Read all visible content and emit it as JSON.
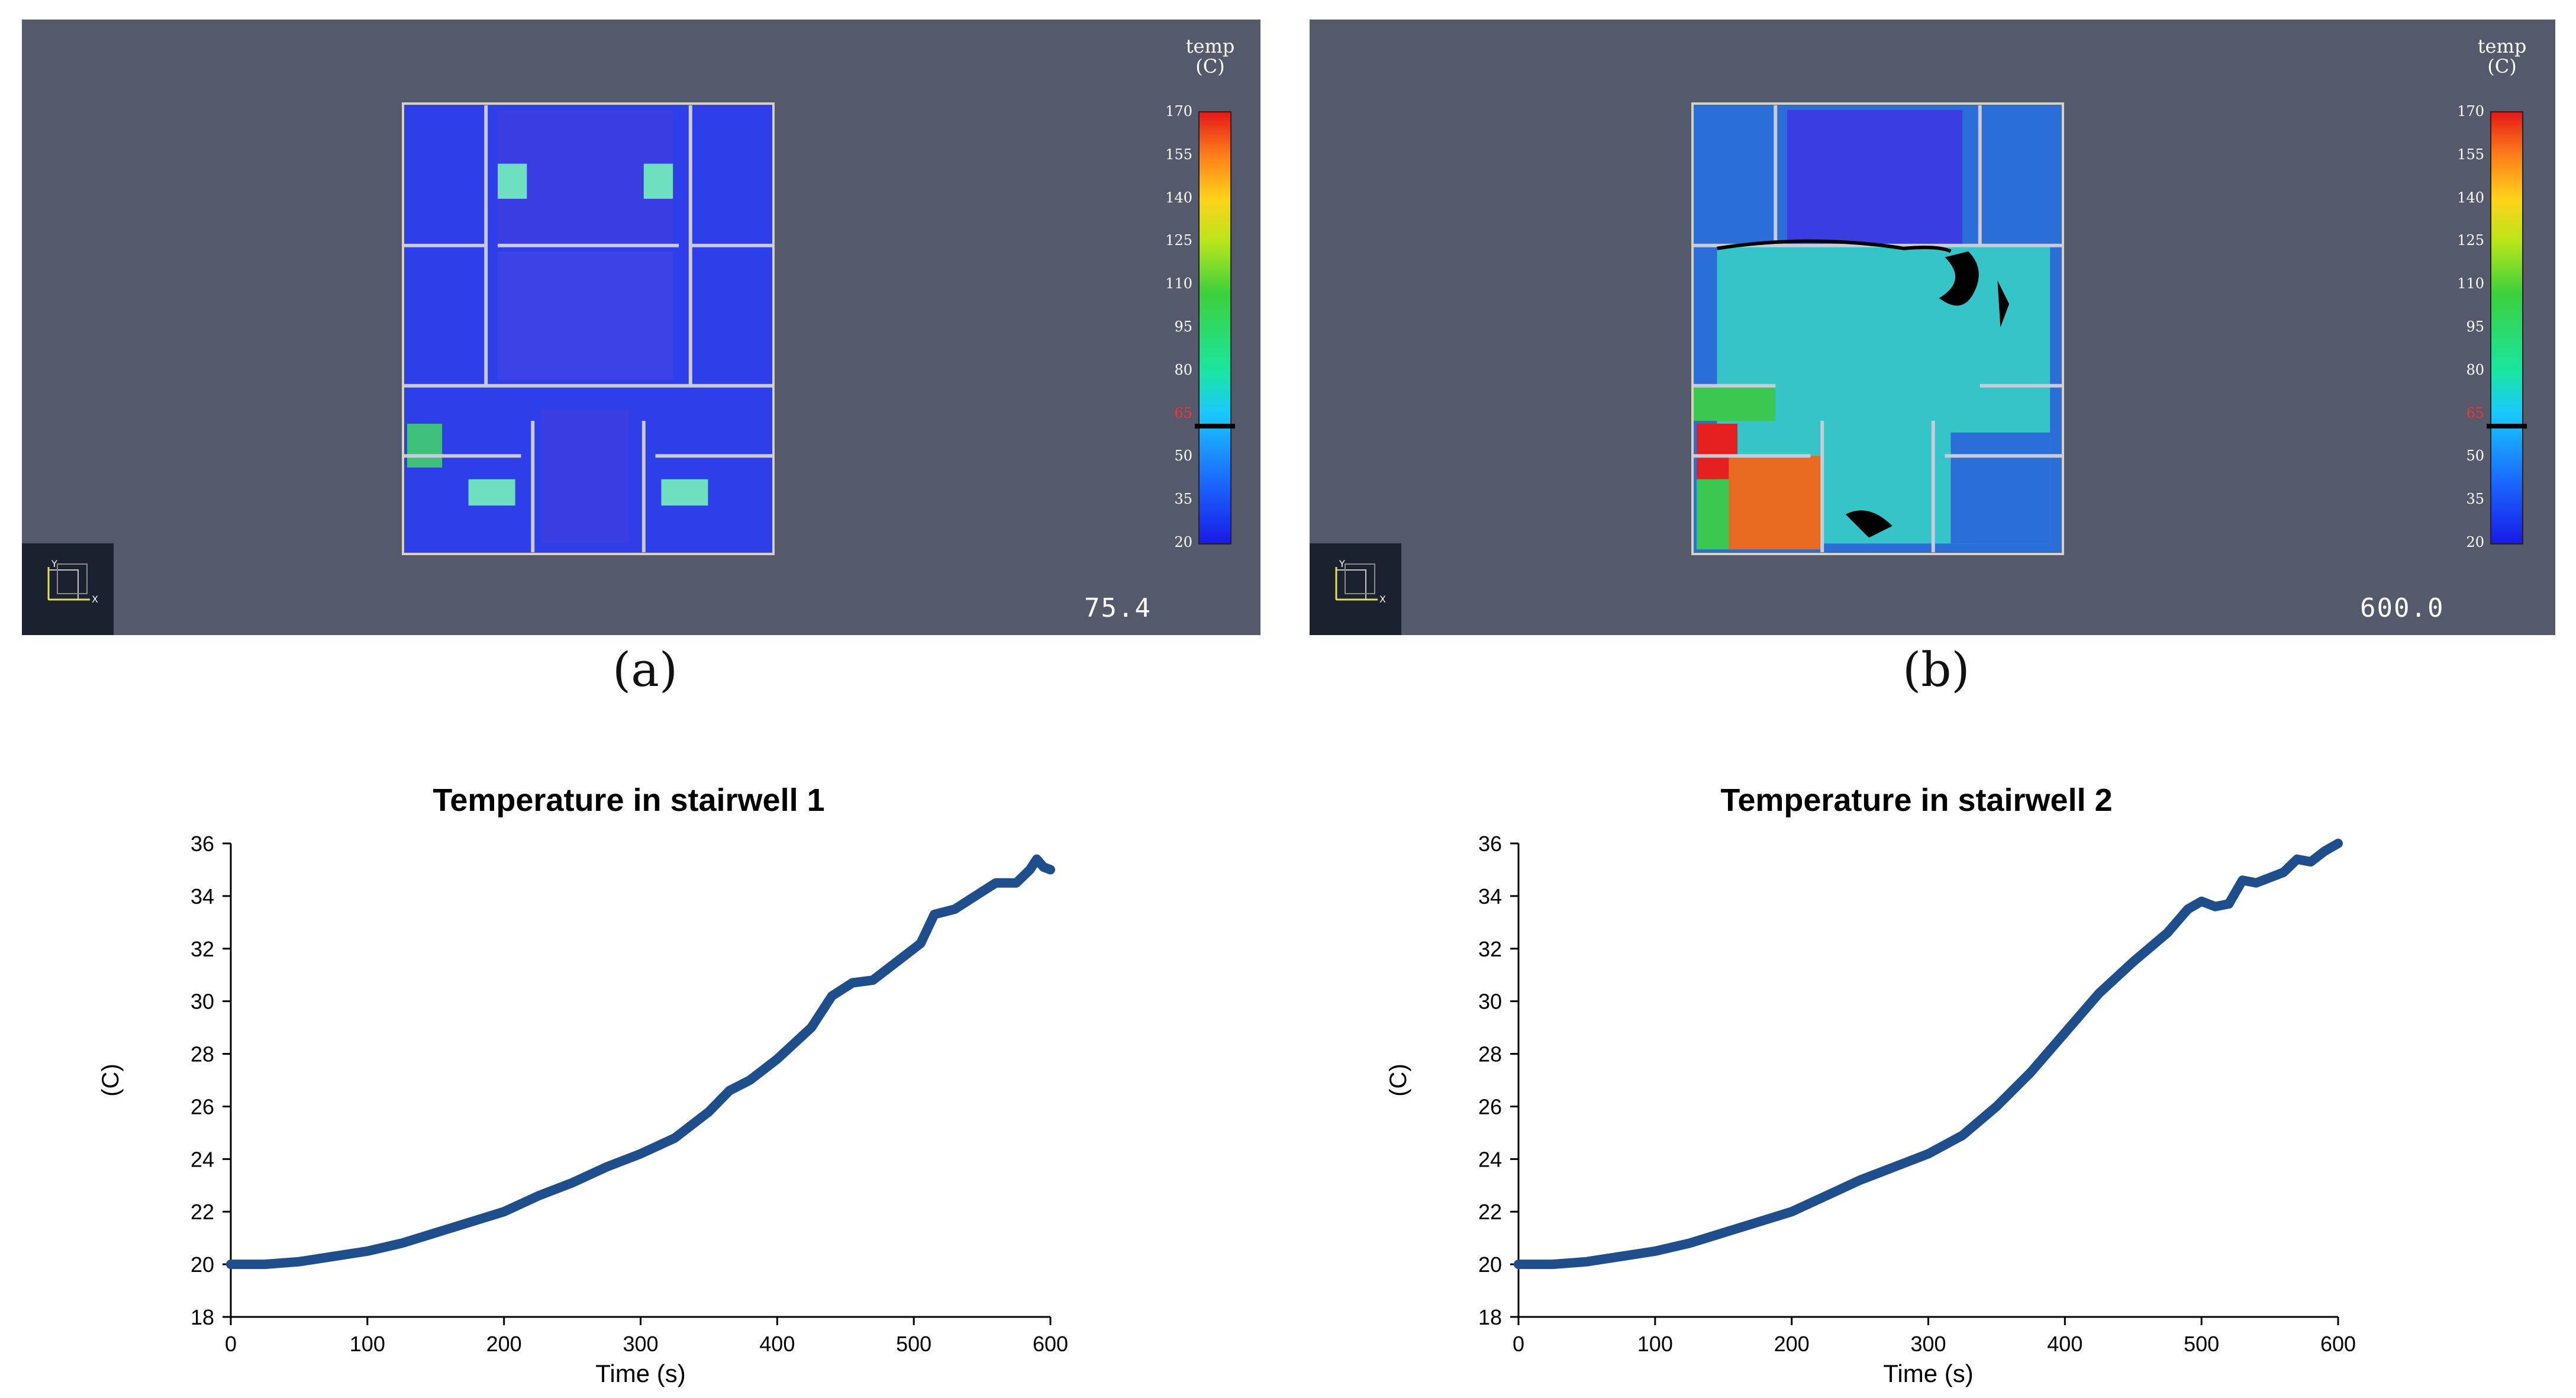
{
  "panels": [
    {
      "label": "(a)",
      "time": "75.4",
      "colorbar_title": "temp\n(C)"
    },
    {
      "label": "(b)",
      "time": "600.0",
      "colorbar_title": "temp\n(C)"
    }
  ],
  "colorbar": {
    "ticks": [
      "170",
      "155",
      "140",
      "125",
      "110",
      "95",
      "80",
      "65",
      "50",
      "35",
      "20"
    ],
    "highlight_tick": "65",
    "colors": {
      "low": "#1a1ae6",
      "mid": "#19e6a0",
      "high": "#e61919",
      "background": "#545a6c"
    }
  },
  "chart_data": [
    {
      "type": "line",
      "title": "Temperature in stairwell 1",
      "xlabel": "Time (s)",
      "ylabel": "(C)",
      "xlim": [
        0,
        600
      ],
      "ylim": [
        18,
        36
      ],
      "xticks": [
        0,
        100,
        200,
        300,
        400,
        500,
        600
      ],
      "yticks": [
        18,
        20,
        22,
        24,
        26,
        28,
        30,
        32,
        34,
        36
      ],
      "series": [
        {
          "name": "stairwell 1",
          "color": "#1f4e8c",
          "x": [
            0,
            25,
            50,
            75,
            100,
            125,
            150,
            175,
            200,
            225,
            250,
            275,
            300,
            325,
            350,
            365,
            380,
            400,
            425,
            440,
            455,
            470,
            490,
            505,
            515,
            530,
            545,
            560,
            575,
            585,
            590,
            595,
            600
          ],
          "y": [
            20.0,
            20.0,
            20.1,
            20.3,
            20.5,
            20.8,
            21.2,
            21.6,
            22.0,
            22.6,
            23.1,
            23.7,
            24.2,
            24.8,
            25.8,
            26.6,
            27.0,
            27.8,
            29.0,
            30.2,
            30.7,
            30.8,
            31.6,
            32.2,
            33.3,
            33.5,
            34.0,
            34.5,
            34.5,
            35.0,
            35.4,
            35.1,
            35.0
          ]
        }
      ]
    },
    {
      "type": "line",
      "title": "Temperature in stairwell 2",
      "xlabel": "Time (s)",
      "ylabel": "(C)",
      "xlim": [
        0,
        600
      ],
      "ylim": [
        18,
        36
      ],
      "xticks": [
        0,
        100,
        200,
        300,
        400,
        500,
        600
      ],
      "yticks": [
        18,
        20,
        22,
        24,
        26,
        28,
        30,
        32,
        34,
        36
      ],
      "series": [
        {
          "name": "stairwell 2",
          "color": "#1f4e8c",
          "x": [
            0,
            25,
            50,
            75,
            100,
            125,
            150,
            175,
            200,
            225,
            250,
            275,
            300,
            325,
            350,
            375,
            400,
            425,
            450,
            475,
            490,
            500,
            510,
            520,
            530,
            540,
            550,
            560,
            570,
            580,
            590,
            600
          ],
          "y": [
            20.0,
            20.0,
            20.1,
            20.3,
            20.5,
            20.8,
            21.2,
            21.6,
            22.0,
            22.6,
            23.2,
            23.7,
            24.2,
            24.9,
            26.0,
            27.3,
            28.8,
            30.3,
            31.5,
            32.6,
            33.5,
            33.8,
            33.6,
            33.7,
            34.6,
            34.5,
            34.7,
            34.9,
            35.4,
            35.3,
            35.7,
            36.0
          ]
        }
      ]
    }
  ]
}
